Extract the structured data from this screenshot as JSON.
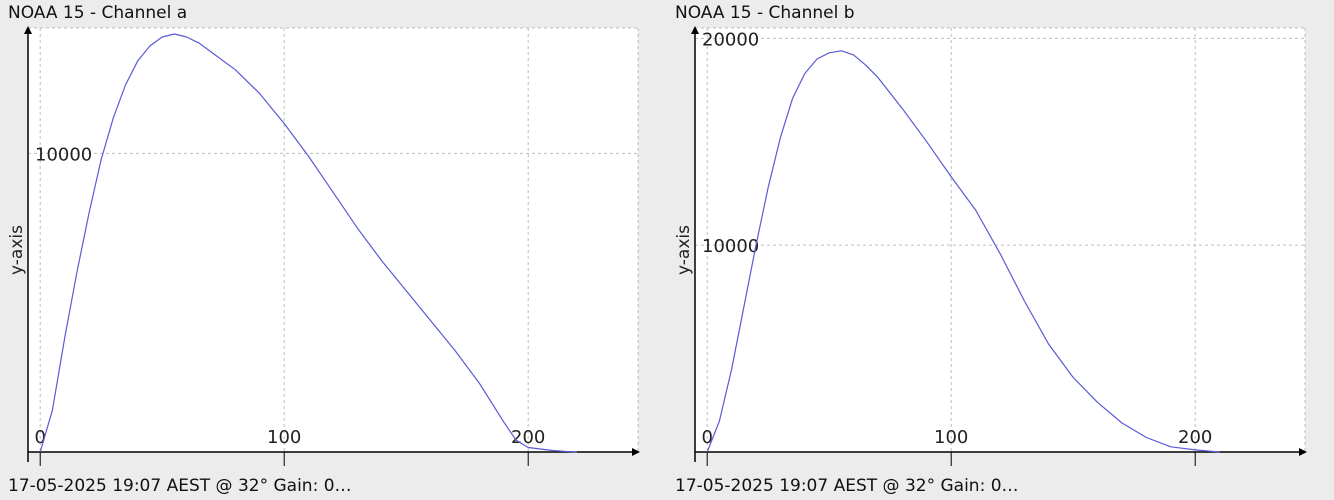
{
  "panels": [
    {
      "title": "NOAA 15 - Channel a",
      "footer": "17-05-2025 19:07 AEST @ 32° Gain: 0…"
    },
    {
      "title": "NOAA 15 - Channel b",
      "footer": "17-05-2025 19:07 AEST @ 32° Gain: 0…"
    }
  ],
  "colors": {
    "line": "#5a5ad6",
    "axis": "#000000",
    "grid": "#bdbdbd",
    "plot_bg": "#ffffff",
    "page_bg": "#ececec"
  },
  "chart_data": [
    {
      "type": "line",
      "title": "NOAA 15 - Channel a",
      "xlabel": "",
      "ylabel": "y-axis",
      "xlim": [
        -5,
        245
      ],
      "ylim": [
        0,
        14200
      ],
      "x_ticks": [
        0,
        100,
        200
      ],
      "y_ticks": [
        10000
      ],
      "grid": true,
      "series": [
        {
          "x": [
            0,
            5,
            10,
            15,
            20,
            25,
            30,
            35,
            40,
            45,
            50,
            55,
            60,
            65,
            70,
            80,
            90,
            100,
            110,
            120,
            130,
            140,
            150,
            160,
            170,
            180,
            190,
            195,
            200,
            205,
            210,
            215,
            220
          ],
          "y": [
            0,
            1400,
            3800,
            6000,
            8000,
            9800,
            11200,
            12300,
            13100,
            13600,
            13900,
            14000,
            13900,
            13700,
            13400,
            12800,
            12000,
            11000,
            9900,
            8700,
            7500,
            6400,
            5400,
            4400,
            3400,
            2300,
            1000,
            400,
            150,
            100,
            50,
            20,
            0
          ]
        }
      ]
    },
    {
      "type": "line",
      "title": "NOAA 15 - Channel b",
      "xlabel": "",
      "ylabel": "y-axis",
      "xlim": [
        -5,
        245
      ],
      "ylim": [
        0,
        20500
      ],
      "x_ticks": [
        0,
        100,
        200
      ],
      "y_ticks": [
        10000,
        20000
      ],
      "grid": true,
      "series": [
        {
          "x": [
            0,
            5,
            10,
            15,
            20,
            25,
            30,
            35,
            40,
            45,
            50,
            55,
            60,
            65,
            70,
            80,
            90,
            100,
            110,
            120,
            130,
            140,
            150,
            160,
            170,
            180,
            190,
            200,
            205,
            210
          ],
          "y": [
            0,
            1500,
            4000,
            7000,
            10000,
            12800,
            15200,
            17100,
            18300,
            19000,
            19300,
            19400,
            19200,
            18700,
            18100,
            16600,
            15000,
            13300,
            11700,
            9600,
            7300,
            5200,
            3600,
            2400,
            1400,
            700,
            250,
            100,
            50,
            0
          ]
        }
      ]
    }
  ]
}
